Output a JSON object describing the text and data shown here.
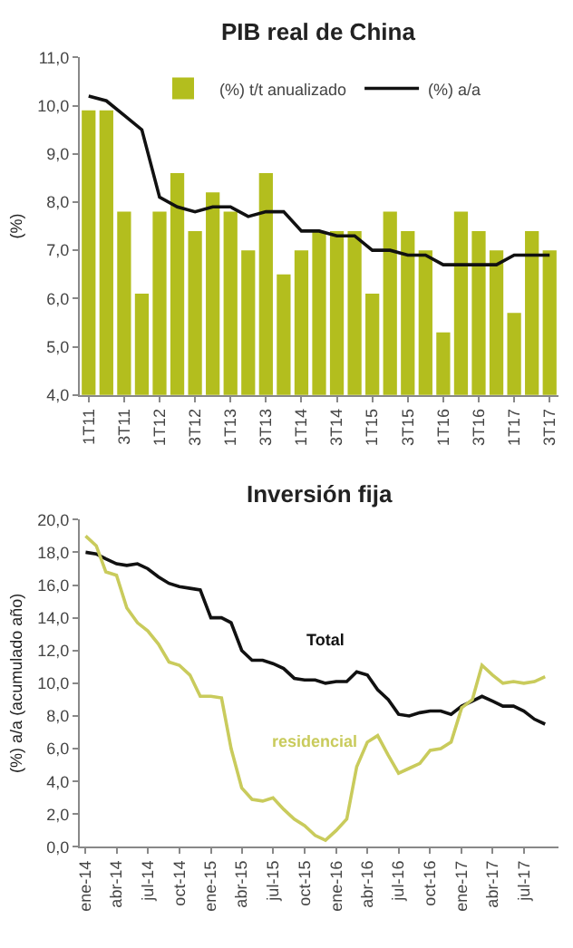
{
  "chart_data": [
    {
      "type": "bar",
      "title": "PIB real de China",
      "ylabel": "(%)",
      "categories": [
        "1T11",
        null,
        "3T11",
        null,
        "1T12",
        null,
        "3T12",
        null,
        "1T13",
        null,
        "3T13",
        null,
        "1T14",
        null,
        "3T14",
        null,
        "1T15",
        null,
        "3T15",
        null,
        "1T16",
        null,
        "3T16",
        null,
        "1T17",
        null,
        "3T17"
      ],
      "series": [
        {
          "name": "(%) t/t anualizado",
          "type": "bar",
          "color": "#b3be1e",
          "values": [
            9.9,
            9.9,
            7.8,
            6.1,
            7.8,
            8.6,
            7.4,
            8.2,
            7.8,
            7.0,
            8.6,
            6.5,
            7.0,
            7.4,
            7.4,
            7.4,
            6.1,
            7.8,
            7.4,
            7.0,
            5.3,
            7.8,
            7.4,
            7.0,
            5.7,
            7.4,
            7.0
          ]
        },
        {
          "name": "(%) a/a",
          "type": "line",
          "color": "#111111",
          "values": [
            10.2,
            10.1,
            9.8,
            9.5,
            8.1,
            7.9,
            7.8,
            7.9,
            7.9,
            7.7,
            7.8,
            7.8,
            7.4,
            7.4,
            7.3,
            7.3,
            7.0,
            7.0,
            6.9,
            6.9,
            6.7,
            6.7,
            6.7,
            6.7,
            6.9,
            6.9,
            6.9
          ]
        }
      ],
      "ylim": [
        4,
        11
      ],
      "yticks": [
        {
          "value": 4,
          "label": "4,0"
        },
        {
          "value": 5,
          "label": "5,0"
        },
        {
          "value": 6,
          "label": "6,0"
        },
        {
          "value": 7,
          "label": "7,0"
        },
        {
          "value": 8,
          "label": "8,0"
        },
        {
          "value": 9,
          "label": "9,0"
        },
        {
          "value": 10,
          "label": "10,0"
        },
        {
          "value": 11,
          "label": "11,0"
        }
      ],
      "legend": "top"
    },
    {
      "type": "line",
      "title": "Inversión fija",
      "ylabel": "(%) a/a (acumulado año)",
      "x": [
        "2014-01",
        "2014-02",
        "2014-03",
        "2014-04",
        "2014-05",
        "2014-06",
        "2014-07",
        "2014-08",
        "2014-09",
        "2014-10",
        "2014-11",
        "2014-12",
        "2015-01",
        "2015-02",
        "2015-03",
        "2015-04",
        "2015-05",
        "2015-06",
        "2015-07",
        "2015-08",
        "2015-09",
        "2015-10",
        "2015-11",
        "2015-12",
        "2016-01",
        "2016-02",
        "2016-03",
        "2016-04",
        "2016-05",
        "2016-06",
        "2016-07",
        "2016-08",
        "2016-09",
        "2016-10",
        "2016-11",
        "2016-12",
        "2017-01",
        "2017-02",
        "2017-03",
        "2017-04",
        "2017-05",
        "2017-06",
        "2017-07",
        "2017-08",
        "2017-09"
      ],
      "series": [
        {
          "name": "Total",
          "color": "#111111",
          "values": [
            18.0,
            17.9,
            17.6,
            17.3,
            17.2,
            17.3,
            17.0,
            16.5,
            16.1,
            15.9,
            15.8,
            15.7,
            14.0,
            14.0,
            13.7,
            12.0,
            11.4,
            11.4,
            11.2,
            10.9,
            10.3,
            10.2,
            10.2,
            10.0,
            10.1,
            10.1,
            10.7,
            10.5,
            9.6,
            9.0,
            8.1,
            8.0,
            8.2,
            8.3,
            8.3,
            8.1,
            8.6,
            8.9,
            9.2,
            8.9,
            8.6,
            8.6,
            8.3,
            7.8,
            7.5
          ]
        },
        {
          "name": "residencial",
          "color": "#c9cb5c",
          "values": [
            19.0,
            18.4,
            16.8,
            16.6,
            14.6,
            13.7,
            13.2,
            12.4,
            11.3,
            11.1,
            10.5,
            9.2,
            9.2,
            9.1,
            6.0,
            3.6,
            2.9,
            2.8,
            3.0,
            2.3,
            1.7,
            1.3,
            0.7,
            0.4,
            1.0,
            1.7,
            4.9,
            6.4,
            6.8,
            5.6,
            4.5,
            4.8,
            5.1,
            5.9,
            6.0,
            6.4,
            8.5,
            9.0,
            11.1,
            10.5,
            10.0,
            10.1,
            10.0,
            10.1,
            10.4
          ]
        }
      ],
      "xlim": [
        "2013-12-15",
        "2017-10-10"
      ],
      "xticks": [
        {
          "value": "2014-01",
          "label": "ene-14"
        },
        {
          "value": "2014-04",
          "label": "abr-14"
        },
        {
          "value": "2014-07",
          "label": "jul-14"
        },
        {
          "value": "2014-10",
          "label": "oct-14"
        },
        {
          "value": "2015-01",
          "label": "ene-15"
        },
        {
          "value": "2015-04",
          "label": "abr-15"
        },
        {
          "value": "2015-07",
          "label": "jul-15"
        },
        {
          "value": "2015-10",
          "label": "oct-15"
        },
        {
          "value": "2016-01",
          "label": "ene-16"
        },
        {
          "value": "2016-04",
          "label": "abr-16"
        },
        {
          "value": "2016-07",
          "label": "jul-16"
        },
        {
          "value": "2016-10",
          "label": "oct-16"
        },
        {
          "value": "2017-01",
          "label": "ene-17"
        },
        {
          "value": "2017-04",
          "label": "abr-17"
        },
        {
          "value": "2017-07",
          "label": "jul-17"
        }
      ],
      "ylim": [
        0,
        20
      ],
      "yticks": [
        {
          "value": 0,
          "label": "0,0"
        },
        {
          "value": 2,
          "label": "2,0"
        },
        {
          "value": 4,
          "label": "4,0"
        },
        {
          "value": 6,
          "label": "6,0"
        },
        {
          "value": 8,
          "label": "8,0"
        },
        {
          "value": 10,
          "label": "10,0"
        },
        {
          "value": 12,
          "label": "12,0"
        },
        {
          "value": 14,
          "label": "14,0"
        },
        {
          "value": 16,
          "label": "16,0"
        },
        {
          "value": 18,
          "label": "18,0"
        },
        {
          "value": 20,
          "label": "20,0"
        }
      ]
    }
  ]
}
